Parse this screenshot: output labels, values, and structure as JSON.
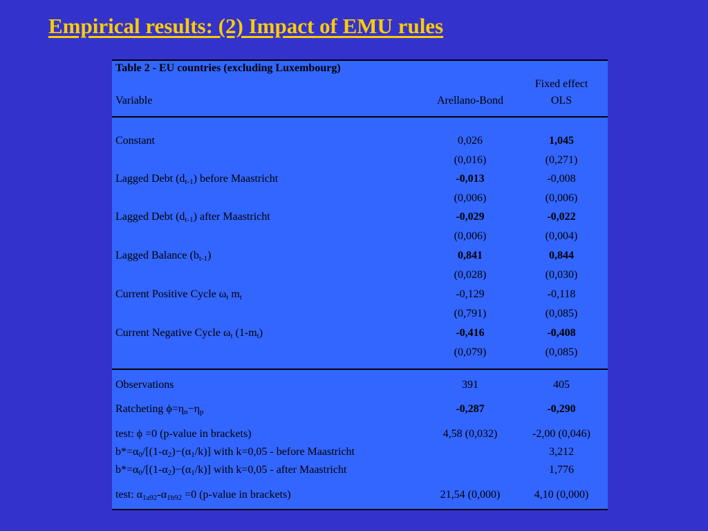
{
  "slide": {
    "title": "Empirical results: (2) Impact of EMU rules"
  },
  "table": {
    "caption": "Table 2 - EU countries (excluding Luxembourg)",
    "header": {
      "variable": "Variable",
      "col1": "Arellano-Bond",
      "col2_line1": "Fixed effect",
      "col2_line2": "OLS"
    },
    "rows": [
      {
        "label": "Constant",
        "ab": "0,026",
        "ab_se": "(0,016)",
        "ols": "1,045",
        "ols_se": "(0,271)"
      },
      {
        "label_pre": "Lagged Debt (d",
        "label_sub": "t-1",
        "label_post": ") before Maastricht",
        "ab": "-0,013",
        "ab_se": "(0,006)",
        "ols": "-0,008",
        "ols_se": "(0,006)"
      },
      {
        "label_pre": "Lagged Debt (d",
        "label_sub": "t-1",
        "label_post": ") after Maastricht",
        "ab": "-0,029",
        "ab_se": "(0,006)",
        "ols": "-0,022",
        "ols_se": "(0,004)"
      },
      {
        "label_pre": "Lagged Balance (b",
        "label_sub": "t-1",
        "label_post": ")",
        "ab": "0,841",
        "ab_se": "(0,028)",
        "ols": "0,844",
        "ols_se": "(0,030)"
      },
      {
        "label_pre": "Current Positive Cycle ω",
        "label_sub": "t",
        "label_mid": " m",
        "label_sub2": "t",
        "ab": "-0,129",
        "ab_se": "(0,791)",
        "ols": "-0,118",
        "ols_se": "(0,085)"
      },
      {
        "label_pre": "Current Negative Cycle  ω",
        "label_sub": "t",
        "label_mid": " (1-m",
        "label_sub2": "t",
        "label_post": ")",
        "ab": "-0,416",
        "ab_se": "(0,079)",
        "ols": "-0,408",
        "ols_se": "(0,085)"
      }
    ],
    "stats": {
      "observations_label": "Observations",
      "observations_ab": "391",
      "observations_ols": "405",
      "ratcheting_pre": "Ratcheting ϕ=η",
      "ratcheting_sub1": "n",
      "ratcheting_mid": "−η",
      "ratcheting_sub2": "p",
      "ratcheting_ab": "-0,287",
      "ratcheting_ols": "-0,290",
      "test_phi_label": "test: ϕ =0 (p-value in brackets)",
      "test_phi_ab": "4,58 (0,032)",
      "test_phi_ols": "-2,00 (0,046)",
      "bstar": {
        "prefix": "b*=α",
        "sub0": "0",
        "part1": "/[(1-α",
        "sub2": "2",
        "part2": ")−(α",
        "sub1": "1",
        "part3": "/k)] with k=0,05 - "
      },
      "bstar_before_suffix": "before Maastricht",
      "bstar_before_ols": "3,212",
      "bstar_after_suffix": "after Maastricht",
      "bstar_after_ols": "1,776",
      "test_alpha_pre": "test: α",
      "test_alpha_sub1": "1a92",
      "test_alpha_mid": "-α",
      "test_alpha_sub2": "1b92",
      "test_alpha_post": " =0 (p-value in brackets)",
      "test_alpha_ab": "21,54 (0,000)",
      "test_alpha_ols": "4,10 (0,000)"
    }
  },
  "colors": {
    "background": "#3333cc",
    "panel": "#3366ff",
    "title": "#ffcc00"
  }
}
